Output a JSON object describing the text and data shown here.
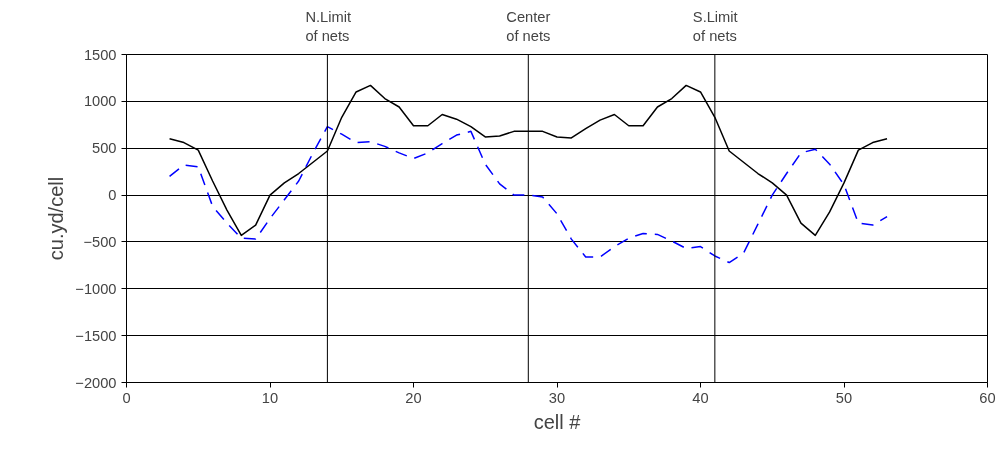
{
  "chart_data": {
    "type": "line",
    "xlabel": "cell #",
    "ylabel": "cu.yd/cell",
    "x": [
      3,
      4,
      5,
      6,
      7,
      8,
      9,
      10,
      11,
      12,
      13,
      14,
      15,
      16,
      17,
      18,
      19,
      20,
      21,
      22,
      23,
      24,
      25,
      26,
      27,
      28,
      29,
      30,
      31,
      32,
      33,
      34,
      35,
      36,
      37,
      38,
      39,
      40,
      41,
      42,
      43,
      44,
      45,
      46,
      47,
      48,
      49,
      50,
      51,
      52,
      53
    ],
    "series": [
      {
        "color": "#000000",
        "line_style": "solid",
        "values": [
          600,
          560,
          480,
          150,
          -160,
          -430,
          -320,
          0,
          130,
          230,
          350,
          470,
          830,
          1100,
          1170,
          1030,
          940,
          740,
          740,
          860,
          810,
          730,
          620,
          630,
          680,
          680,
          680,
          620,
          610,
          710,
          800,
          860,
          740,
          740,
          940,
          1030,
          1170,
          1100,
          830,
          470,
          350,
          230,
          130,
          0,
          -300,
          -430,
          -180,
          130,
          480,
          560,
          600
        ]
      },
      {
        "color": "#0000ff",
        "line_style": "dashed",
        "values": [
          200,
          320,
          300,
          -120,
          -300,
          -460,
          -470,
          -250,
          -50,
          150,
          450,
          730,
          650,
          560,
          570,
          520,
          450,
          390,
          450,
          550,
          640,
          680,
          330,
          120,
          0,
          0,
          -20,
          -200,
          -470,
          -660,
          -660,
          -550,
          -460,
          -410,
          -420,
          -490,
          -570,
          -550,
          -650,
          -720,
          -620,
          -310,
          0,
          230,
          450,
          490,
          330,
          110,
          -300,
          -320,
          -230
        ]
      }
    ],
    "xlim": [
      0,
      60
    ],
    "xticks": [
      0,
      10,
      20,
      30,
      40,
      50,
      60
    ],
    "ylim": [
      -2000,
      1500
    ],
    "yticks": [
      -2000,
      -1500,
      -1000,
      -500,
      0,
      500,
      1000,
      1500
    ],
    "grid": "y",
    "marker": "none",
    "ref_lines": [
      {
        "axis": "x",
        "value": 14,
        "label": "N.Limit\nof nets",
        "color": "#000000"
      },
      {
        "axis": "x",
        "value": 28,
        "label": "Center\nof nets",
        "color": "#000000"
      },
      {
        "axis": "x",
        "value": 41,
        "label": "S.Limit\nof nets",
        "color": "#000000"
      }
    ]
  }
}
